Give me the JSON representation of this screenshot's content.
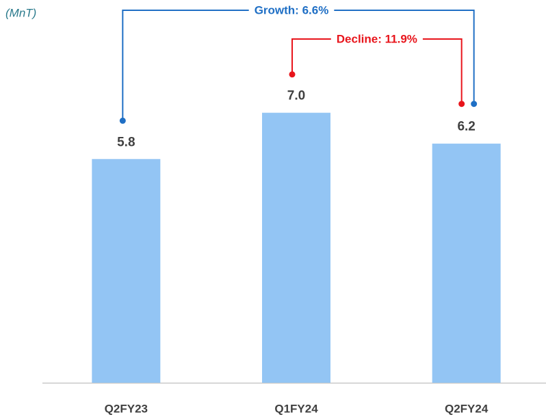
{
  "chart_data": {
    "type": "bar",
    "unit_label": "(MnT)",
    "categories": [
      "Q2FY23",
      "Q1FY24",
      "Q2FY24"
    ],
    "values": [
      5.8,
      7.0,
      6.2
    ],
    "value_labels": [
      "5.8",
      "7.0",
      "6.2"
    ],
    "color": "#93c5f4",
    "ylim": [
      0,
      9
    ],
    "annotations": [
      {
        "text": "Growth: 6.6%",
        "from": "Q2FY23",
        "to": "Q2FY24",
        "color": "#1f6fc5"
      },
      {
        "text": "Decline: 11.9%",
        "from": "Q1FY24",
        "to": "Q2FY24",
        "color": "#e8141b"
      }
    ]
  }
}
